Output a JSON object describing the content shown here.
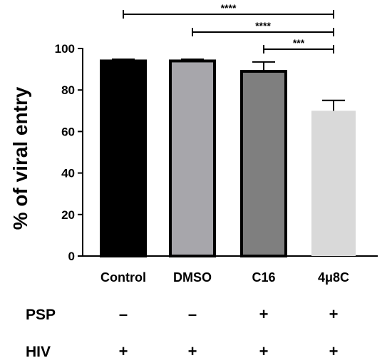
{
  "chart_data": {
    "type": "bar",
    "ylabel": "% of viral entry",
    "ylim": [
      0,
      100
    ],
    "yticks": [
      0,
      20,
      40,
      60,
      80,
      100
    ],
    "categories": [
      "Control",
      "DMSO",
      "C16",
      "4μ8C"
    ],
    "values": [
      94,
      94,
      89,
      70
    ],
    "errors": [
      0.8,
      0.8,
      4.5,
      5
    ],
    "bar_colors": [
      "#000000",
      "#a7a6ab",
      "#7f7f7f",
      "#d9d9d9"
    ],
    "bar_outlined": [
      true,
      true,
      true,
      false
    ],
    "significance": [
      {
        "from": 0,
        "to": 3,
        "label": "****"
      },
      {
        "from": 1,
        "to": 3,
        "label": "****"
      },
      {
        "from": 2,
        "to": 3,
        "label": "***"
      }
    ],
    "conditions": [
      {
        "label": "PSP",
        "values": [
          "–",
          "–",
          "+",
          "+"
        ]
      },
      {
        "label": "HIV",
        "values": [
          "+",
          "+",
          "+",
          "+"
        ]
      }
    ]
  }
}
